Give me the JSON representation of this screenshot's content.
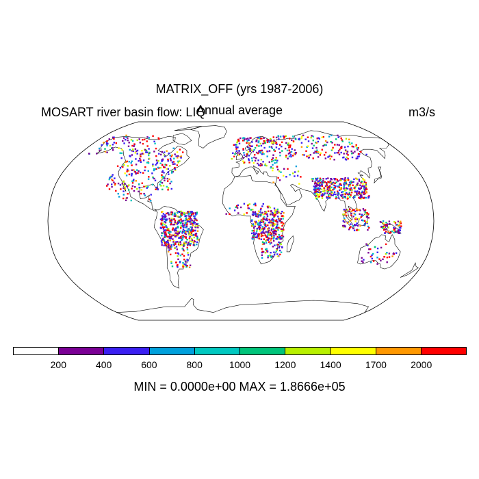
{
  "title": "MATRIX_OFF (yrs 1987-2006)",
  "left_label": "MOSART river basin flow: LIQ",
  "center_label": "Annual average",
  "units_label": "m3/s",
  "stats_label": "MIN = 0.0000e+00 MAX = 1.8666e+05",
  "colorbar": {
    "colors": [
      "#ffffff",
      "#7b0095",
      "#3a1ff2",
      "#00a0dc",
      "#00c8c0",
      "#00c47a",
      "#b8f000",
      "#ffff00",
      "#ff9800",
      "#ff0000"
    ],
    "ticks": [
      "200",
      "400",
      "600",
      "800",
      "1000",
      "1200",
      "1400",
      "1700",
      "2000"
    ]
  },
  "map": {
    "projection": "robinson",
    "land_outline_color": "#000000",
    "regions": [
      {
        "lon": [
          -130,
          -65
        ],
        "lat": [
          25,
          60
        ],
        "n": 230
      },
      {
        "lon": [
          -170,
          -100
        ],
        "lat": [
          55,
          72
        ],
        "n": 70
      },
      {
        "lon": [
          -75,
          -40
        ],
        "lat": [
          -20,
          8
        ],
        "n": 420
      },
      {
        "lon": [
          -70,
          -50
        ],
        "lat": [
          -38,
          -20
        ],
        "n": 60
      },
      {
        "lon": [
          -120,
          -85
        ],
        "lat": [
          15,
          28
        ],
        "n": 25
      },
      {
        "lon": [
          -10,
          40
        ],
        "lat": [
          45,
          70
        ],
        "n": 160
      },
      {
        "lon": [
          40,
          140
        ],
        "lat": [
          50,
          72
        ],
        "n": 190
      },
      {
        "lon": [
          10,
          40
        ],
        "lat": [
          -15,
          8
        ],
        "n": 280
      },
      {
        "lon": [
          20,
          40
        ],
        "lat": [
          -30,
          -15
        ],
        "n": 60
      },
      {
        "lon": [
          -15,
          35
        ],
        "lat": [
          5,
          15
        ],
        "n": 50
      },
      {
        "lon": [
          70,
          122
        ],
        "lat": [
          18,
          35
        ],
        "n": 360
      },
      {
        "lon": [
          95,
          120
        ],
        "lat": [
          -8,
          10
        ],
        "n": 90
      },
      {
        "lon": [
          130,
          150
        ],
        "lat": [
          -10,
          0
        ],
        "n": 70
      },
      {
        "lon": [
          115,
          150
        ],
        "lat": [
          -35,
          -18
        ],
        "n": 40
      },
      {
        "lon": [
          30,
          60
        ],
        "lat": [
          30,
          45
        ],
        "n": 25
      }
    ]
  }
}
